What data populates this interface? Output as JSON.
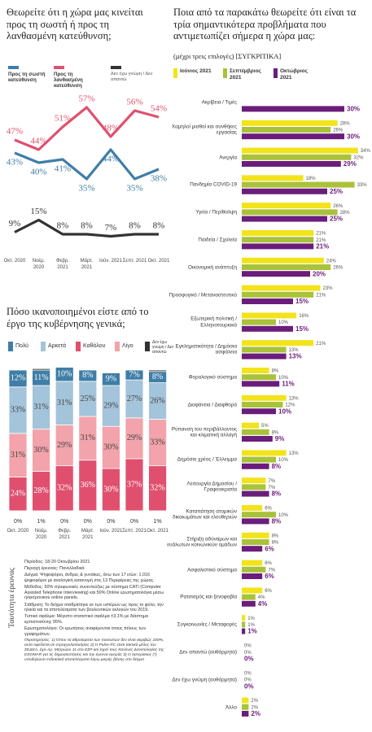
{
  "chart_data": [
    {
      "type": "line",
      "title": "Θεωρείτε ότι η χώρα μας κινείται προς τη σωστή ή προς τη λανθασμένη κατεύθυνση;",
      "categories": [
        "Οκτ. 2020",
        "Νοέμ. 2020",
        "Φεβρ. 2021",
        "Μάρτ. 2021",
        "Ιούν. 2021",
        "Σεπτ. 2021",
        "Οκτ. 2021"
      ],
      "series": [
        {
          "name": "Προς τη σωστή κατεύθυνση",
          "color": "#3f7ea6",
          "values": [
            43,
            40,
            41,
            35,
            44,
            35,
            38
          ],
          "value_labels": [
            "43%",
            "40%",
            "41%",
            "35%",
            "44%",
            "35%",
            "38%"
          ]
        },
        {
          "name": "Προς τη λανθασμένη κατεύθυνση",
          "color": "#e0506e",
          "values": [
            47,
            44,
            51,
            57,
            48,
            56,
            54
          ],
          "value_labels": [
            "47%",
            "44%",
            "51%",
            "57%",
            "48%",
            "56%",
            "54%"
          ]
        },
        {
          "name": "Δεν έχω γνώμη / Δεν απαντώ",
          "color": "#333333",
          "axis": "y2",
          "values": [
            9,
            15,
            8,
            8,
            7,
            8,
            8
          ],
          "value_labels": [
            "9%",
            "15%",
            "8%",
            "8%",
            "7%",
            "8%",
            "8%"
          ]
        }
      ],
      "ylim": [
        30,
        60
      ],
      "y2lim": [
        0,
        20
      ]
    },
    {
      "type": "stacked_bar",
      "title": "Πόσο ικανοποιημένοι είστε από το έργο της κυβέρνησης γενικά;",
      "categories": [
        "Οκτ. 2020",
        "Νοέμ. 2020",
        "Φεβρ. 2021",
        "Μάρτ. 2021",
        "Ιούν. 2021",
        "Σεπτ. 2021",
        "Οκτ. 2021"
      ],
      "series": [
        {
          "name": "Πολύ",
          "color": "#3f7ea6",
          "values": [
            12,
            11,
            10,
            8,
            9,
            7,
            8
          ],
          "value_labels": [
            "12%",
            "11%",
            "10%",
            "8%",
            "9%",
            "7%",
            "8%"
          ]
        },
        {
          "name": "Αρκετά",
          "color": "#a3c4da",
          "values": [
            33,
            31,
            31,
            25,
            29,
            27,
            26
          ],
          "value_labels": [
            "33%",
            "31%",
            "31%",
            "25%",
            "29%",
            "27%",
            "26%"
          ]
        },
        {
          "name": "Καθόλου",
          "color": "#e0506e",
          "values": [
            24,
            28,
            32,
            36,
            30,
            37,
            32
          ],
          "value_labels": [
            "24%",
            "28%",
            "32%",
            "36%",
            "30%",
            "37%",
            "32%"
          ]
        },
        {
          "name": "Λίγο",
          "color": "#f2a3ab",
          "values": [
            31,
            30,
            29,
            31,
            30,
            29,
            33
          ],
          "value_labels": [
            "31%",
            "30%",
            "29%",
            "31%",
            "30%",
            "29%",
            "33%"
          ]
        },
        {
          "name": "Δεν έχω γνώμη / Δεν απαντώ",
          "color": "#333333",
          "values": [
            0,
            1,
            0,
            0,
            0,
            0,
            1
          ],
          "value_labels": [
            "0%",
            "1%",
            "0%",
            "0%",
            "0%",
            "0%",
            "1%"
          ]
        }
      ],
      "ylim": [
        0,
        100
      ]
    },
    {
      "type": "grouped_hbar",
      "title": "Ποια από τα παρακάτω θεωρείτε ότι είναι τα τρία σημαντικότερα προβλήματα που αντιμετωπίζει σήμερα η χώρα μας:",
      "subtitle": "(μέχρι τρεις επιλογές) [ΣΥΓΚΡΙΤΙΚΑ]",
      "categories": [
        "Ακρίβεια / Τιμές",
        "Χαμηλοί μισθοί και συνθήκες εργασίας",
        "Ανεργία",
        "Πανδημία COVID-19",
        "Υγεία / Περίθαλψη",
        "Παιδεία / Σχολεία",
        "Οικονομική ανάπτυξη",
        "Προσφυγικό / Μεταναστευτικό",
        "Εξωτερική πολιτική / Ελληνοτουρκικά",
        "Εγκληματικότητα / Δημόσια ασφάλεια",
        "Φορολογικό σύστημα",
        "Διαφάνεια / Διαφθορά",
        "Ρύπανση του περιβάλλοντος και κλιματική αλλαγή",
        "Δημόσιο χρέος / Έλλειμμα",
        "Λειτουργία Δημοσίου / Γραφειοκρατία",
        "Καταπάτηση ατομικών δικαιωμάτων και ελευθεριών",
        "Στήριξη αδύναμων και ευάλωτων κοινωνικών ομάδων",
        "Ασφαλιστικό σύστημα",
        "Ρατσισμός και ξενοφοβία",
        "Συγκοινωνίες / Μεταφορές",
        "Δεν απαντώ (αυθόρμητα)",
        "Δεν έχω γνώμη (αυθόρμητα)",
        "Άλλο"
      ],
      "series": [
        {
          "name": "Ιούνιος 2021",
          "color": "#f2e31b",
          "values": [
            null,
            28,
            34,
            18,
            26,
            21,
            24,
            23,
            16,
            21,
            8,
            13,
            5,
            13,
            7,
            6,
            8,
            6,
            6,
            1,
            0,
            0,
            2
          ],
          "value_labels": [
            null,
            "28%",
            "34%",
            "18%",
            "26%",
            "21%",
            "24%",
            "23%",
            "16%",
            "21%",
            "8%",
            "13%",
            "5%",
            "13%",
            "7%",
            "6%",
            "8%",
            "6%",
            "6%",
            "1%",
            "0%",
            "0%",
            "2%"
          ]
        },
        {
          "name": "Σεπτέμβριος 2021",
          "color": "#a9c23a",
          "values": [
            null,
            26,
            32,
            33,
            28,
            21,
            26,
            21,
            10,
            13,
            10,
            12,
            8,
            10,
            7,
            10,
            8,
            7,
            4,
            1,
            0,
            0,
            2
          ],
          "value_labels": [
            null,
            "26%",
            "32%",
            "33%",
            "28%",
            "21%",
            "26%",
            "21%",
            "10%",
            "13%",
            "10%",
            "12%",
            "8%",
            "10%",
            "7%",
            "10%",
            "8%",
            "7%",
            "4%",
            "1%",
            "0%",
            "0%",
            "2%"
          ]
        },
        {
          "name": "Οκτώβριος 2021",
          "color": "#6b1d7b",
          "values": [
            30,
            30,
            29,
            25,
            25,
            21,
            20,
            15,
            15,
            13,
            11,
            10,
            9,
            8,
            8,
            8,
            6,
            6,
            4,
            1,
            0,
            0,
            2
          ],
          "value_labels": [
            "30%",
            "30%",
            "29%",
            "25%",
            "25%",
            "21%",
            "20%",
            "15%",
            "15%",
            "13%",
            "11%",
            "10%",
            "9%",
            "8%",
            "8%",
            "8%",
            "6%",
            "6%",
            "4%",
            "1%",
            "0%",
            "0%",
            "2%"
          ]
        }
      ],
      "xlim": [
        0,
        35
      ]
    }
  ],
  "methodology": {
    "label": "Ταυτότητα έρευνας",
    "paragraphs": [
      "Περίοδος: 18-20 Οκτωβρίου 2021",
      "Περιοχή έρευνας: Πανελλαδικά",
      "Δείγμα: Ψηφοφόροι, άνδρες & γυναίκες, άνω των 17 ετών. 1.016 ψηφοφόροι με αναλογική κατανομή στις 13 Περιφέρειες της χώρας.",
      "Μέθοδος: 50% τηλεφωνικές συνεντεύξεις με σύστημα CATI (Computer Assisted Telephone Interviewing) και 50% Online ερωτηματολόγια μέσω ηλεκτρονικού online panels.",
      "Στάθμιση: Το δείγμα σταθμίστηκε εκ των υστέρων ως προς το φύλο, την ηλικία και τα αποτελέσματα των βουλευτικών εκλογών του 2019.",
      "Τυπικό σφάλμα: Μέγιστο στατιστικό σφάλμα ±3,1% με διάστημα εμπιστοσύνης 95%.",
      "Ερωτηματολόγιο: Οι ερωτήσεις αναφέρονται στους τίτλους των γραφημάτων.",
      "Παρατηρήσεις: 1) Όπου τα αθροίσματα των ποσοστών δεν είναι ακριβώς 100%, αυτό οφείλεται σε στρογγυλοποιήσεις 2) Η Pulse RC είναι τακτικό μέλος του ΣΕΔΕΑ, έχει Αρ. Μητρώου 11 στο ΕΣΡ και τηρεί τους Κανόνες Δεοντολογίας της ESOMAR για τις δημοσκοπήσεις και την έρευνα αγοράς 3) Ο αστερίσκος (*) υποδηλώνει ενδεικτικά αποτελέσματα λόγω μικρής βάσης στο δείγμα"
    ]
  }
}
